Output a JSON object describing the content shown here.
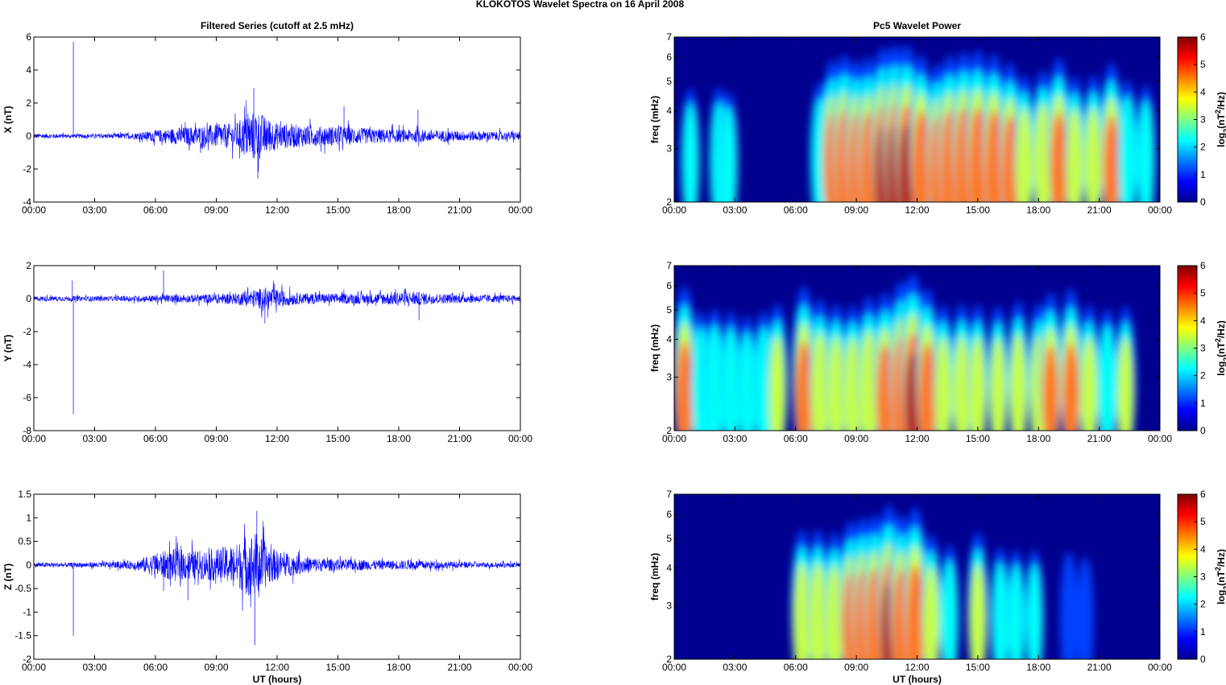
{
  "suptitle": "KLOKOTOS Wavelet Spectra on 16 April     2008",
  "colors": {
    "trace": "#0000ff",
    "axis": "#000000"
  },
  "chart_data": [
    {
      "type": "line",
      "title": "Filtered Series (cutoff at 2.5 mHz)",
      "ylabel": "X (nT)",
      "xlabel": "",
      "xticks": [
        "00:00",
        "03:00",
        "06:00",
        "09:00",
        "12:00",
        "15:00",
        "18:00",
        "21:00",
        "00:00"
      ],
      "xlim_hours": [
        0,
        24
      ],
      "ylim": [
        -4,
        6
      ],
      "yticks": [
        "-4",
        "-2",
        "0",
        "2",
        "4",
        "6"
      ],
      "series": [
        {
          "values_desc": "noise",
          "envelope_hours": [
            0,
            2,
            4,
            5,
            6,
            7,
            8,
            9,
            10,
            10.5,
            11,
            11.5,
            12,
            13,
            14,
            15,
            16,
            17,
            18,
            19,
            20,
            22,
            24
          ],
          "envelope_amp": [
            0.15,
            0.12,
            0.15,
            0.2,
            0.35,
            0.5,
            0.6,
            0.7,
            0.8,
            1.4,
            1.6,
            1.1,
            0.8,
            0.7,
            0.6,
            0.6,
            0.5,
            0.45,
            0.4,
            0.4,
            0.35,
            0.3,
            0.25
          ],
          "spikes": [
            {
              "t": 1.95,
              "v": 5.7
            },
            {
              "t": 10.85,
              "v": 2.9
            },
            {
              "t": 11.05,
              "v": -2.6
            },
            {
              "t": 15.3,
              "v": 1.8
            },
            {
              "t": 18.95,
              "v": 1.6
            }
          ]
        }
      ]
    },
    {
      "type": "heatmap",
      "title": "Pc5 Wavelet Power",
      "ylabel": "freq (mHz)",
      "xlabel": "",
      "xticks": [
        "00:00",
        "03:00",
        "06:00",
        "09:00",
        "12:00",
        "15:00",
        "18:00",
        "21:00",
        "00:00"
      ],
      "xlim_hours": [
        0,
        24
      ],
      "ylim": [
        2,
        7
      ],
      "yscale": "log",
      "yticks": [
        "2",
        "3",
        "4",
        "5",
        "6",
        "7"
      ],
      "colorbar": {
        "label_base": "log",
        "label_sub": "2",
        "label_mid": "(nT",
        "label_sup": "2",
        "label_end": "/Hz)",
        "range": [
          0,
          6
        ],
        "ticks": [
          "0",
          "1",
          "2",
          "3",
          "4",
          "5",
          "6"
        ],
        "colormap": "jet"
      },
      "blobs": [
        {
          "t": 0.8,
          "p": 2.5
        },
        {
          "t": 2.2,
          "p": 2.6
        },
        {
          "t": 2.7,
          "p": 2.2
        },
        {
          "t": 7.2,
          "p": 3.0
        },
        {
          "t": 7.8,
          "p": 4.8
        },
        {
          "t": 8.4,
          "p": 5.2
        },
        {
          "t": 9.0,
          "p": 4.8
        },
        {
          "t": 9.6,
          "p": 5.0
        },
        {
          "t": 10.3,
          "p": 5.8
        },
        {
          "t": 10.9,
          "p": 6.0
        },
        {
          "t": 11.5,
          "p": 6.0
        },
        {
          "t": 12.2,
          "p": 5.2
        },
        {
          "t": 13.0,
          "p": 4.5
        },
        {
          "t": 13.6,
          "p": 5.2
        },
        {
          "t": 14.3,
          "p": 5.5
        },
        {
          "t": 15.0,
          "p": 5.6
        },
        {
          "t": 15.8,
          "p": 5.3
        },
        {
          "t": 16.6,
          "p": 4.6
        },
        {
          "t": 17.3,
          "p": 3.6
        },
        {
          "t": 18.2,
          "p": 4.0
        },
        {
          "t": 19.0,
          "p": 5.0
        },
        {
          "t": 19.8,
          "p": 3.5
        },
        {
          "t": 20.7,
          "p": 3.6
        },
        {
          "t": 21.6,
          "p": 4.6
        },
        {
          "t": 22.4,
          "p": 3.2
        },
        {
          "t": 23.3,
          "p": 2.8
        }
      ]
    },
    {
      "type": "line",
      "title": "",
      "ylabel": "Y (nT)",
      "xlabel": "",
      "xticks": [
        "00:00",
        "03:00",
        "06:00",
        "09:00",
        "12:00",
        "15:00",
        "18:00",
        "21:00",
        "00:00"
      ],
      "xlim_hours": [
        0,
        24
      ],
      "ylim": [
        -8,
        2
      ],
      "yticks": [
        "-8",
        "-6",
        "-4",
        "-2",
        "0",
        "2"
      ],
      "series": [
        {
          "values_desc": "noise",
          "envelope_hours": [
            0,
            2,
            4,
            6,
            8,
            10,
            11,
            11.5,
            12,
            13,
            15,
            17,
            18,
            19,
            20,
            22,
            24
          ],
          "envelope_amp": [
            0.15,
            0.15,
            0.15,
            0.22,
            0.25,
            0.35,
            0.6,
            0.7,
            0.55,
            0.35,
            0.3,
            0.35,
            0.45,
            0.4,
            0.3,
            0.25,
            0.2
          ],
          "spikes": [
            {
              "t": 1.95,
              "v": -7.0
            },
            {
              "t": 1.9,
              "v": 1.1
            },
            {
              "t": 6.4,
              "v": 1.7
            },
            {
              "t": 11.4,
              "v": -1.5
            },
            {
              "t": 19.0,
              "v": -1.3
            }
          ]
        }
      ]
    },
    {
      "type": "heatmap",
      "title": "",
      "ylabel": "freq (mHz)",
      "xlabel": "",
      "xticks": [
        "00:00",
        "03:00",
        "06:00",
        "09:00",
        "12:00",
        "15:00",
        "18:00",
        "21:00",
        "00:00"
      ],
      "xlim_hours": [
        0,
        24
      ],
      "ylim": [
        2,
        7
      ],
      "yscale": "log",
      "yticks": [
        "2",
        "3",
        "4",
        "5",
        "6",
        "7"
      ],
      "colorbar": {
        "label_base": "log",
        "label_sub": "2",
        "label_mid": "(nT",
        "label_sup": "2",
        "label_end": "/Hz)",
        "range": [
          0,
          6
        ],
        "ticks": [
          "0",
          "1",
          "2",
          "3",
          "4",
          "5",
          "6"
        ],
        "colormap": "jet"
      },
      "blobs": [
        {
          "t": 0.5,
          "p": 5.0
        },
        {
          "t": 1.3,
          "p": 3.0
        },
        {
          "t": 2.0,
          "p": 3.2
        },
        {
          "t": 2.8,
          "p": 3.0
        },
        {
          "t": 3.6,
          "p": 2.6
        },
        {
          "t": 4.4,
          "p": 3.0
        },
        {
          "t": 5.1,
          "p": 3.6
        },
        {
          "t": 6.4,
          "p": 5.0
        },
        {
          "t": 7.2,
          "p": 4.0
        },
        {
          "t": 8.0,
          "p": 3.6
        },
        {
          "t": 8.8,
          "p": 3.5
        },
        {
          "t": 9.6,
          "p": 4.2
        },
        {
          "t": 10.4,
          "p": 4.5
        },
        {
          "t": 11.2,
          "p": 5.4
        },
        {
          "t": 11.8,
          "p": 6.0
        },
        {
          "t": 12.5,
          "p": 4.8
        },
        {
          "t": 13.3,
          "p": 3.5
        },
        {
          "t": 14.2,
          "p": 3.6
        },
        {
          "t": 15.0,
          "p": 3.5
        },
        {
          "t": 16.0,
          "p": 3.4
        },
        {
          "t": 17.0,
          "p": 3.8
        },
        {
          "t": 18.0,
          "p": 3.6
        },
        {
          "t": 18.6,
          "p": 4.5
        },
        {
          "t": 19.6,
          "p": 4.8
        },
        {
          "t": 20.5,
          "p": 3.5
        },
        {
          "t": 21.4,
          "p": 3.2
        },
        {
          "t": 22.3,
          "p": 3.4
        }
      ]
    },
    {
      "type": "line",
      "title": "",
      "ylabel": "Z (nT)",
      "xlabel": "UT (hours)",
      "xticks": [
        "00:00",
        "03:00",
        "06:00",
        "09:00",
        "12:00",
        "15:00",
        "18:00",
        "21:00",
        "00:00"
      ],
      "xlim_hours": [
        0,
        24
      ],
      "ylim": [
        -2,
        1.5
      ],
      "yticks": [
        "-2",
        "-1.5",
        "-1",
        "-0.5",
        "0",
        "0.5",
        "1",
        "1.5"
      ],
      "series": [
        {
          "values_desc": "noise",
          "envelope_hours": [
            0,
            2,
            4,
            5,
            6,
            7,
            8,
            9,
            10,
            10.5,
            11,
            11.5,
            12,
            13,
            14,
            15,
            16,
            17,
            18,
            19,
            20,
            22,
            24
          ],
          "envelope_amp": [
            0.05,
            0.05,
            0.07,
            0.1,
            0.25,
            0.35,
            0.3,
            0.35,
            0.45,
            0.65,
            0.7,
            0.45,
            0.3,
            0.2,
            0.15,
            0.12,
            0.12,
            0.1,
            0.1,
            0.1,
            0.08,
            0.06,
            0.05
          ],
          "spikes": [
            {
              "t": 1.95,
              "v": -1.5
            },
            {
              "t": 10.9,
              "v": -1.7
            },
            {
              "t": 11.0,
              "v": 1.15
            },
            {
              "t": 7.6,
              "v": -0.75
            },
            {
              "t": 6.4,
              "v": -0.55
            }
          ]
        }
      ]
    },
    {
      "type": "heatmap",
      "title": "",
      "ylabel": "freq (mHz)",
      "xlabel": "UT (hours)",
      "xticks": [
        "00:00",
        "03:00",
        "06:00",
        "09:00",
        "12:00",
        "15:00",
        "18:00",
        "21:00",
        "00:00"
      ],
      "xlim_hours": [
        0,
        24
      ],
      "ylim": [
        2,
        7
      ],
      "yscale": "log",
      "yticks": [
        "2",
        "3",
        "4",
        "5",
        "6",
        "7"
      ],
      "colorbar": {
        "label_base": "log",
        "label_sub": "2",
        "label_mid": "(nT",
        "label_sup": "2",
        "label_end": "/Hz)",
        "range": [
          0,
          6
        ],
        "ticks": [
          "0",
          "1",
          "2",
          "3",
          "4",
          "5",
          "6"
        ],
        "colormap": "jet"
      },
      "blobs": [
        {
          "t": 6.3,
          "p": 3.8
        },
        {
          "t": 7.1,
          "p": 3.8
        },
        {
          "t": 7.9,
          "p": 3.6
        },
        {
          "t": 8.7,
          "p": 4.5
        },
        {
          "t": 9.3,
          "p": 4.8
        },
        {
          "t": 9.9,
          "p": 5.0
        },
        {
          "t": 10.6,
          "p": 5.8
        },
        {
          "t": 11.2,
          "p": 5.0
        },
        {
          "t": 11.9,
          "p": 5.6
        },
        {
          "t": 12.7,
          "p": 3.4
        },
        {
          "t": 13.6,
          "p": 2.6
        },
        {
          "t": 15.0,
          "p": 3.6
        },
        {
          "t": 16.1,
          "p": 2.4
        },
        {
          "t": 16.9,
          "p": 2.2
        },
        {
          "t": 17.8,
          "p": 2.2
        },
        {
          "t": 19.5,
          "p": 2.0
        },
        {
          "t": 20.3,
          "p": 1.6
        }
      ]
    }
  ]
}
